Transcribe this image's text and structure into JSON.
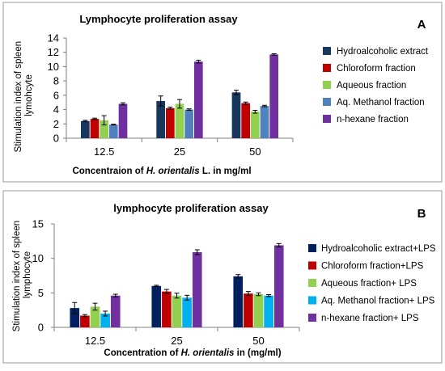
{
  "chart_data": [
    {
      "type": "bar",
      "panel": "A",
      "title": "Lymphocyte proliferation assay",
      "ylabel": "Stimulation index of spleen lymohcyte",
      "xlabel_parts": [
        "Concentraion of ",
        "H. orientalis",
        " L. in mg/ml"
      ],
      "categories": [
        "12.5",
        "25",
        "50"
      ],
      "ylim": [
        0,
        14
      ],
      "yticks": [
        0,
        2,
        4,
        6,
        8,
        10,
        12,
        14
      ],
      "legend_position": "right",
      "series": [
        {
          "name": "Hydroalcoholic extract",
          "color": "#17375e",
          "values": [
            2.4,
            5.2,
            6.4
          ],
          "errors": [
            0.1,
            0.7,
            0.3
          ]
        },
        {
          "name": "Chloroform fraction",
          "color": "#c00000",
          "values": [
            2.7,
            4.2,
            4.9
          ],
          "errors": [
            0.1,
            0.15,
            0.15
          ]
        },
        {
          "name": "Aqueous fraction",
          "color": "#92d050",
          "values": [
            2.5,
            4.8,
            3.7
          ],
          "errors": [
            0.65,
            0.6,
            0.2
          ]
        },
        {
          "name": "Aq. Methanol fraction",
          "color": "#4f81bd",
          "values": [
            1.9,
            4.0,
            4.5
          ],
          "errors": [
            0.05,
            0.1,
            0.1
          ]
        },
        {
          "name": "n-hexane fraction",
          "color": "#7030a0",
          "values": [
            4.8,
            10.7,
            11.7
          ],
          "errors": [
            0.15,
            0.2,
            0.1
          ]
        }
      ]
    },
    {
      "type": "bar",
      "panel": "B",
      "title": "lymphocyte proliferation assay",
      "ylabel": "Stimulation index of spleen lymphocyte",
      "xlabel_parts": [
        "Concentration of ",
        "H. orientalis",
        " in (mg/ml)"
      ],
      "categories": [
        "12.5",
        "25",
        "50"
      ],
      "ylim": [
        0,
        15
      ],
      "yticks": [
        0,
        5,
        10,
        15
      ],
      "legend_position": "right",
      "series": [
        {
          "name": "Hydroalcoholic extract+LPS",
          "color": "#002060",
          "values": [
            2.8,
            6.0,
            7.4
          ],
          "errors": [
            0.8,
            0.1,
            0.25
          ]
        },
        {
          "name": "Chloroform fraction+LPS",
          "color": "#c00000",
          "values": [
            1.7,
            5.2,
            4.9
          ],
          "errors": [
            0.15,
            0.3,
            0.3
          ]
        },
        {
          "name": "Aqueous fraction+ LPS",
          "color": "#92d050",
          "values": [
            3.0,
            4.6,
            4.8
          ],
          "errors": [
            0.5,
            0.35,
            0.2
          ]
        },
        {
          "name": "Aq. Methanol fraction+ LPS",
          "color": "#00b0f0",
          "values": [
            2.0,
            4.3,
            4.6
          ],
          "errors": [
            0.35,
            0.35,
            0.15
          ]
        },
        {
          "name": "n-hexane fraction+ LPS",
          "color": "#7030a0",
          "values": [
            4.6,
            10.9,
            11.9
          ],
          "errors": [
            0.2,
            0.35,
            0.25
          ]
        }
      ]
    }
  ]
}
